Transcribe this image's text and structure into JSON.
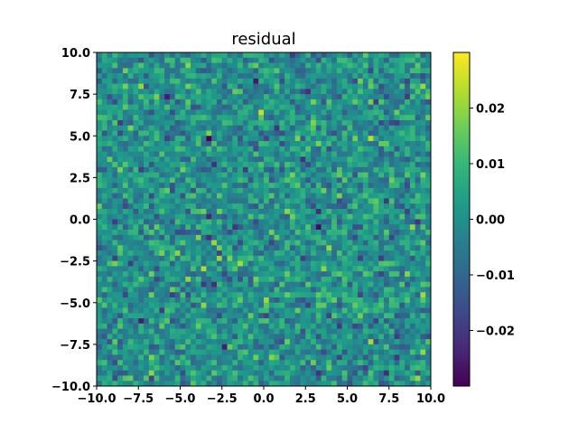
{
  "chart_data": {
    "type": "heatmap",
    "title": "residual",
    "xlabel": "",
    "ylabel": "",
    "xlim": [
      -10,
      10
    ],
    "ylim": [
      -10,
      10
    ],
    "xticks": [
      "−10.0",
      "−7.5",
      "−5.0",
      "−2.5",
      "0.0",
      "2.5",
      "5.0",
      "7.5",
      "10.0"
    ],
    "yticks": [
      "−10.0",
      "−7.5",
      "−5.0",
      "−2.5",
      "0.0",
      "2.5",
      "5.0",
      "7.5",
      "10.0"
    ],
    "grid": false,
    "colormap": "viridis",
    "grid_shape": [
      64,
      64
    ],
    "zlim": [
      -0.03,
      0.03
    ],
    "values_note_visible": false,
    "colorbar": {
      "ticks": [
        "−0.02",
        "−0.01",
        "0.00",
        "0.01",
        "0.02"
      ],
      "tick_values": [
        -0.02,
        -0.01,
        0.0,
        0.01,
        0.02
      ]
    }
  }
}
